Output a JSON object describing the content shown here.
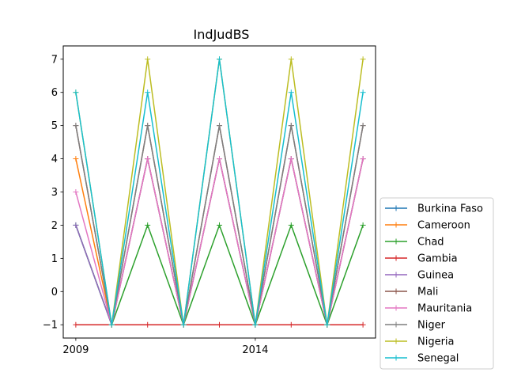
{
  "chart_data": {
    "type": "line",
    "title": "IndJudBS",
    "xlabel": "",
    "ylabel": "",
    "x": [
      2009,
      2010,
      2011,
      2012,
      2013,
      2014,
      2015,
      2016,
      2017
    ],
    "xticks": [
      2009,
      2014
    ],
    "xlim": [
      2008.65,
      2017.35
    ],
    "yticks": [
      -1,
      0,
      1,
      2,
      3,
      4,
      5,
      6,
      7
    ],
    "ylim": [
      -1.4,
      7.4
    ],
    "grid": false,
    "legend_position": "outside-right",
    "series": [
      {
        "name": "Burkina Faso",
        "color": "#1f77b4",
        "values": [
          2,
          -1,
          4,
          -1,
          4,
          -1,
          4,
          -1,
          4
        ]
      },
      {
        "name": "Cameroon",
        "color": "#ff7f0e",
        "values": [
          4,
          -1,
          4,
          -1,
          4,
          -1,
          4,
          -1,
          4
        ]
      },
      {
        "name": "Chad",
        "color": "#2ca02c",
        "values": [
          2,
          -1,
          2,
          -1,
          2,
          -1,
          2,
          -1,
          2
        ]
      },
      {
        "name": "Gambia",
        "color": "#d62728",
        "values": [
          -1,
          -1,
          -1,
          -1,
          -1,
          -1,
          -1,
          -1,
          -1
        ]
      },
      {
        "name": "Guinea",
        "color": "#9467bd",
        "values": [
          2,
          -1,
          4,
          -1,
          4,
          -1,
          4,
          -1,
          4
        ]
      },
      {
        "name": "Mali",
        "color": "#8c564b",
        "values": [
          5,
          -1,
          5,
          -1,
          5,
          -1,
          5,
          -1,
          5
        ]
      },
      {
        "name": "Mauritania",
        "color": "#e377c2",
        "values": [
          3,
          -1,
          4,
          -1,
          4,
          -1,
          4,
          -1,
          4
        ]
      },
      {
        "name": "Niger",
        "color": "#7f7f7f",
        "values": [
          5,
          -1,
          5,
          -1,
          5,
          -1,
          5,
          -1,
          5
        ]
      },
      {
        "name": "Nigeria",
        "color": "#bcbd22",
        "values": [
          6,
          -1,
          7,
          -1,
          7,
          -1,
          7,
          -1,
          7
        ]
      },
      {
        "name": "Senegal",
        "color": "#17becf",
        "values": [
          6,
          -1,
          6,
          -1,
          7,
          -1,
          6,
          -1,
          6
        ]
      }
    ]
  }
}
